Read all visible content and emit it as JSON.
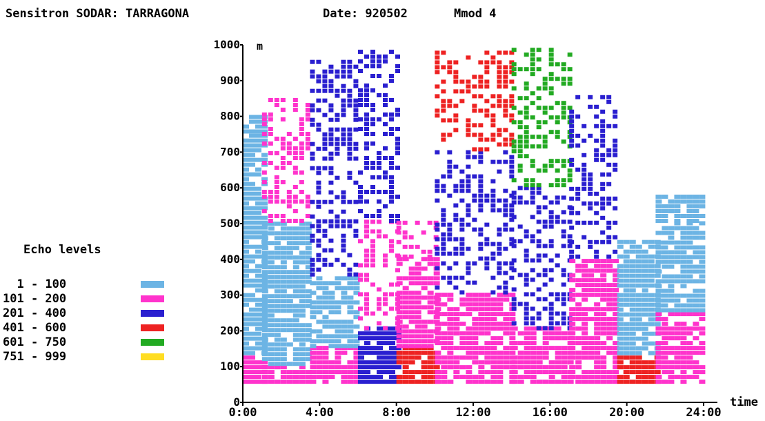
{
  "header": {
    "station": "Sensitron SODAR: TARRAGONA",
    "date": "Date: 920502",
    "mmod": "Mmod 4"
  },
  "chart_data": {
    "type": "heatmap",
    "title": "Sensitron SODAR: TARRAGONA",
    "xlabel": "time",
    "ylabel": "m",
    "xlim": [
      0,
      24
    ],
    "ylim": [
      0,
      1000
    ],
    "x_ticks": [
      "0:00",
      "4:00",
      "8:00",
      "12:00",
      "16:00",
      "20:00",
      "24:00"
    ],
    "y_ticks": [
      "0",
      "100",
      "200",
      "300",
      "400",
      "500",
      "600",
      "700",
      "800",
      "900",
      "1000"
    ],
    "legend": {
      "title": "Echo levels",
      "placement": "left",
      "levels": [
        {
          "range": "  1 - 100",
          "color": "#6cb4e4"
        },
        {
          "range": "101 - 200",
          "color": "#ff33cc"
        },
        {
          "range": "201 - 400",
          "color": "#2a1fd0"
        },
        {
          "range": "401 - 600",
          "color": "#ee2222"
        },
        {
          "range": "601 - 750",
          "color": "#22aa22"
        },
        {
          "range": "751 - 999",
          "color": "#ffdd22"
        }
      ]
    },
    "profiles": [
      {
        "t_start": 0.0,
        "t_end": 1.0,
        "echo_by_height": {
          "50-130": "101-200",
          "130-750": "1-100",
          "750-800": "1-100"
        }
      },
      {
        "t_start": 1.0,
        "t_end": 3.5,
        "echo_by_height": {
          "50-100": "101-200",
          "100-500": "1-100",
          "500-850": "101-200"
        }
      },
      {
        "t_start": 3.5,
        "t_end": 6.0,
        "echo_by_height": {
          "50-150": "101-200",
          "150-350": "1-100",
          "350-950": "201-400"
        }
      },
      {
        "t_start": 6.0,
        "t_end": 8.0,
        "echo_by_height": {
          "50-200": "201-400",
          "200-500": "101-200",
          "500-980": "201-400"
        }
      },
      {
        "t_start": 8.0,
        "t_end": 10.0,
        "echo_by_height": {
          "50-150": "401-600",
          "150-400": "101-200",
          "400-500": "101-200"
        }
      },
      {
        "t_start": 10.0,
        "t_end": 14.0,
        "echo_by_height": {
          "50-300": "101-200",
          "300-700": "201-400",
          "700-980": "401-600"
        }
      },
      {
        "t_start": 14.0,
        "t_end": 17.0,
        "echo_by_height": {
          "50-200": "101-200",
          "200-600": "201-400",
          "600-980": "601-750"
        }
      },
      {
        "t_start": 17.0,
        "t_end": 19.5,
        "echo_by_height": {
          "50-400": "101-200",
          "400-850": "201-400"
        }
      },
      {
        "t_start": 19.5,
        "t_end": 21.5,
        "echo_by_height": {
          "50-130": "401-600",
          "130-450": "1-100"
        }
      },
      {
        "t_start": 21.5,
        "t_end": 24.0,
        "echo_by_height": {
          "50-250": "101-200",
          "250-500": "1-100",
          "500-580": "1-100"
        }
      }
    ]
  }
}
